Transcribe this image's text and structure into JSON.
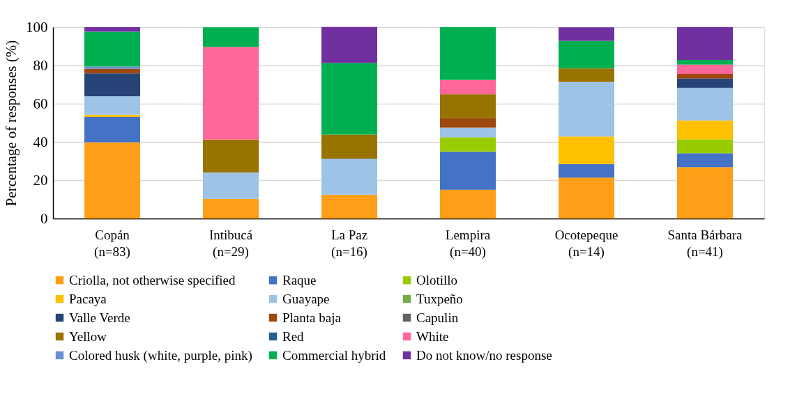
{
  "chart_data": {
    "type": "bar",
    "stacked": true,
    "ylabel": "Percentage of responses (%)",
    "categories": [
      "Copán\n(n=83)",
      "Intibucá\n(n=29)",
      "La Paz\n(n=16)",
      "Lempira\n(n=40)",
      "Ocotepeque\n(n=14)",
      "Santa Bárbara\n(n=41)"
    ],
    "ylim": [
      0,
      100
    ],
    "yticks": [
      0,
      20,
      40,
      60,
      80,
      100
    ],
    "grid": "y",
    "legend": "bottom",
    "series": [
      {
        "name": "Criolla, not otherwise specified",
        "color": "#ff9f17",
        "values": [
          39.8,
          10.3,
          12.5,
          15.0,
          21.4,
          26.8
        ]
      },
      {
        "name": "Raque",
        "color": "#4472c4",
        "values": [
          13.3,
          0,
          0,
          20.0,
          7.1,
          7.3
        ]
      },
      {
        "name": "Olotillo",
        "color": "#99cc00",
        "values": [
          0,
          0,
          0,
          7.5,
          0,
          7.3
        ]
      },
      {
        "name": "Pacaya",
        "color": "#ffc000",
        "values": [
          1.2,
          0,
          0,
          0,
          14.3,
          9.8
        ]
      },
      {
        "name": "Guayape",
        "color": "#9dc3e6",
        "values": [
          9.6,
          13.8,
          18.8,
          5.0,
          28.6,
          17.1
        ]
      },
      {
        "name": "Tuxpeño",
        "color": "#70ad47",
        "values": [
          0,
          0,
          0,
          0,
          0,
          0
        ]
      },
      {
        "name": "Valle Verde",
        "color": "#264478",
        "values": [
          12.0,
          0,
          0,
          0,
          0,
          4.9
        ]
      },
      {
        "name": "Planta baja",
        "color": "#9e480e",
        "values": [
          2.4,
          0,
          0,
          5.0,
          0,
          2.4
        ]
      },
      {
        "name": "Capulin",
        "color": "#636363",
        "values": [
          0,
          0,
          0,
          0,
          0,
          0
        ]
      },
      {
        "name": "Yellow",
        "color": "#997300",
        "values": [
          0,
          17.2,
          12.5,
          12.5,
          7.1,
          0
        ]
      },
      {
        "name": "Red",
        "color": "#255e91",
        "values": [
          0,
          0,
          0,
          0,
          0,
          0
        ]
      },
      {
        "name": "White",
        "color": "#ff6699",
        "values": [
          0,
          48.3,
          0,
          7.5,
          0,
          4.9
        ]
      },
      {
        "name": "Colored husk (white, purple, pink)",
        "color": "#698ed0",
        "values": [
          1.2,
          0,
          0,
          0,
          0,
          0
        ]
      },
      {
        "name": "Commercial hybrid",
        "color": "#00b050",
        "values": [
          18.1,
          10.3,
          37.5,
          27.5,
          14.3,
          2.4
        ]
      },
      {
        "name": "Do not know/no response",
        "color": "#7030a0",
        "values": [
          2.4,
          0,
          18.8,
          0,
          7.1,
          17.1
        ]
      }
    ]
  }
}
